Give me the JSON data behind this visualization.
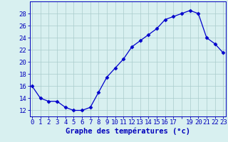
{
  "hours": [
    0,
    1,
    2,
    3,
    4,
    5,
    6,
    7,
    8,
    9,
    10,
    11,
    12,
    13,
    14,
    15,
    16,
    17,
    18,
    19,
    20,
    21,
    22,
    23
  ],
  "temps": [
    16,
    14,
    13.5,
    13.5,
    12.5,
    12,
    12,
    12.5,
    15,
    17.5,
    19,
    20.5,
    22.5,
    23.5,
    24.5,
    25.5,
    27,
    27.5,
    28,
    28.5,
    28,
    24,
    23,
    21.5
  ],
  "xtick_labels": [
    "0",
    "1",
    "2",
    "3",
    "4",
    "5",
    "6",
    "7",
    "8",
    "9",
    "10",
    "11",
    "12",
    "13",
    "14",
    "15",
    "16",
    "17",
    " ",
    "19",
    "20",
    "21",
    "22",
    "23"
  ],
  "line_color": "#0000cc",
  "bg_color": "#d8f0f0",
  "grid_color": "#aacccc",
  "axis_color": "#0000bb",
  "title": "Graphe des températures (°c)",
  "ylim": [
    11,
    30
  ],
  "yticks": [
    12,
    14,
    16,
    18,
    20,
    22,
    24,
    26,
    28
  ],
  "xlabel_fontsize": 7.5,
  "tick_fontsize": 6.5
}
